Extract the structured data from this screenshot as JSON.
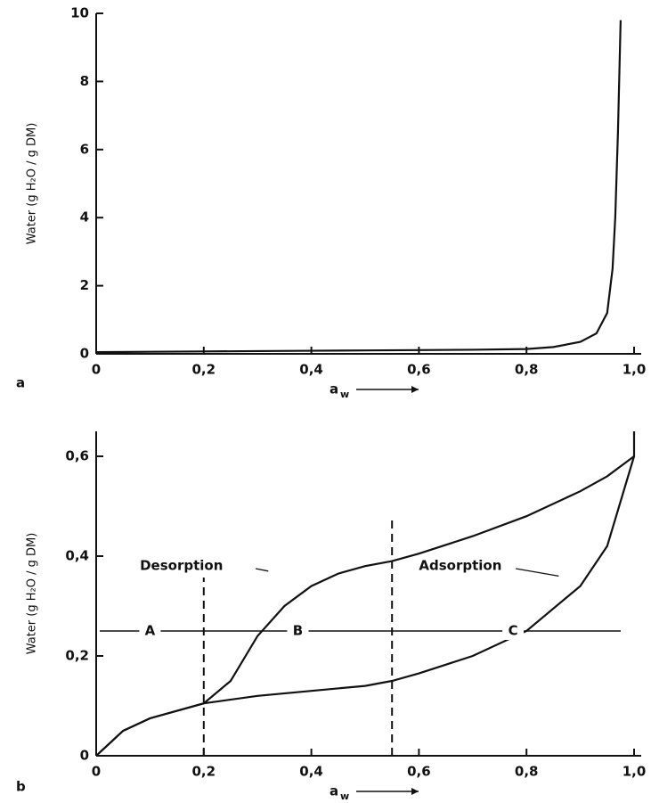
{
  "chart_data": [
    {
      "type": "line",
      "panel": "a",
      "y_label": "Water (g H₂O / g DM)",
      "x_label": "a",
      "x_label_sub": "w",
      "xlim": [
        0,
        1.0
      ],
      "ylim": [
        0,
        10
      ],
      "xticks": [
        0,
        {
          "value": 0.2,
          "label": "0,2"
        },
        {
          "value": 0.4,
          "label": "0,4"
        },
        {
          "value": 0.6,
          "label": "0,6"
        },
        {
          "value": 0.8,
          "label": "0,8"
        },
        {
          "value": 1.0,
          "label": "1,0"
        }
      ],
      "yticks": [
        0,
        2,
        4,
        6,
        8,
        10
      ],
      "series": [
        {
          "color": "#111111",
          "x": [
            0,
            0.1,
            0.2,
            0.3,
            0.4,
            0.5,
            0.6,
            0.7,
            0.8,
            0.85,
            0.9,
            0.93,
            0.95,
            0.96,
            0.965,
            0.97,
            0.975
          ],
          "values": [
            0.05,
            0.06,
            0.07,
            0.08,
            0.09,
            0.1,
            0.11,
            0.12,
            0.14,
            0.2,
            0.35,
            0.6,
            1.2,
            2.5,
            4,
            6.5,
            9.8
          ]
        }
      ]
    },
    {
      "type": "line",
      "panel": "b",
      "y_label": "Water (g H₂O / g DM)",
      "x_label": "a",
      "x_label_sub": "w",
      "xlim": [
        0,
        1.0
      ],
      "ylim": [
        0,
        0.65
      ],
      "xticks": [
        0,
        {
          "value": 0.2,
          "label": "0,2"
        },
        {
          "value": 0.4,
          "label": "0,4"
        },
        {
          "value": 0.6,
          "label": "0,6"
        },
        {
          "value": 0.8,
          "label": "0,8"
        },
        {
          "value": 1.0,
          "label": "1,0"
        }
      ],
      "yticks": [
        0,
        {
          "value": 0.2,
          "label": "0,2"
        },
        {
          "value": 0.4,
          "label": "0,4"
        },
        {
          "value": 0.6,
          "label": "0,6"
        }
      ],
      "region_bounds": [
        0.2,
        0.55
      ],
      "region_labels": [
        "A",
        "B",
        "C"
      ],
      "region_arrow_y": 0.25,
      "series": [
        {
          "name": "Desorption",
          "color": "#111111",
          "x": [
            0,
            0.05,
            0.1,
            0.2,
            0.25,
            0.3,
            0.35,
            0.4,
            0.45,
            0.5,
            0.55,
            0.6,
            0.7,
            0.8,
            0.9,
            0.95,
            1.0,
            1.0
          ],
          "values": [
            0,
            0.05,
            0.075,
            0.105,
            0.15,
            0.24,
            0.3,
            0.34,
            0.365,
            0.38,
            0.39,
            0.405,
            0.44,
            0.48,
            0.53,
            0.56,
            0.6,
            0.65
          ]
        },
        {
          "name": "Adsorption",
          "color": "#111111",
          "x": [
            0,
            0.05,
            0.1,
            0.2,
            0.3,
            0.4,
            0.5,
            0.55,
            0.6,
            0.7,
            0.8,
            0.9,
            0.95,
            1.0
          ],
          "values": [
            0,
            0.05,
            0.075,
            0.105,
            0.12,
            0.13,
            0.14,
            0.15,
            0.165,
            0.2,
            0.25,
            0.34,
            0.42,
            0.6
          ]
        }
      ]
    }
  ]
}
